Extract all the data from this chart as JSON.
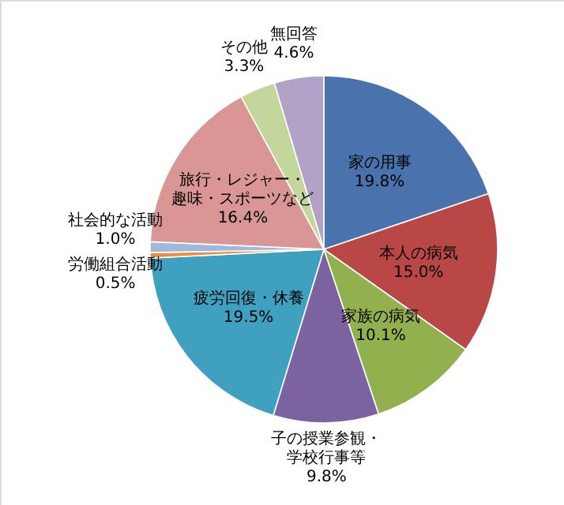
{
  "chart_data": {
    "type": "pie",
    "categories": [
      "家の用事",
      "本人の病気",
      "家族の病気",
      "子の授業参観・学校行事等",
      "疲労回復・休養",
      "労働組合活動",
      "社会的な活動",
      "旅行・レジャー・趣味・スポーツなど",
      "その他",
      "無回答"
    ],
    "values": [
      19.8,
      15.0,
      10.1,
      9.8,
      19.5,
      0.5,
      1.0,
      16.4,
      3.3,
      4.6
    ],
    "colors": [
      "#4a72ac",
      "#b84746",
      "#93b04e",
      "#7b62a0",
      "#3fa0bf",
      "#f08a3c",
      "#9fb9dc",
      "#d99694",
      "#c3d69b",
      "#b2a2c7"
    ],
    "value_labels": [
      "19.8%",
      "15.0%",
      "10.1%",
      "9.8%",
      "19.5%",
      "0.5%",
      "1.0%",
      "16.4%",
      "3.3%",
      "4.6%"
    ]
  }
}
